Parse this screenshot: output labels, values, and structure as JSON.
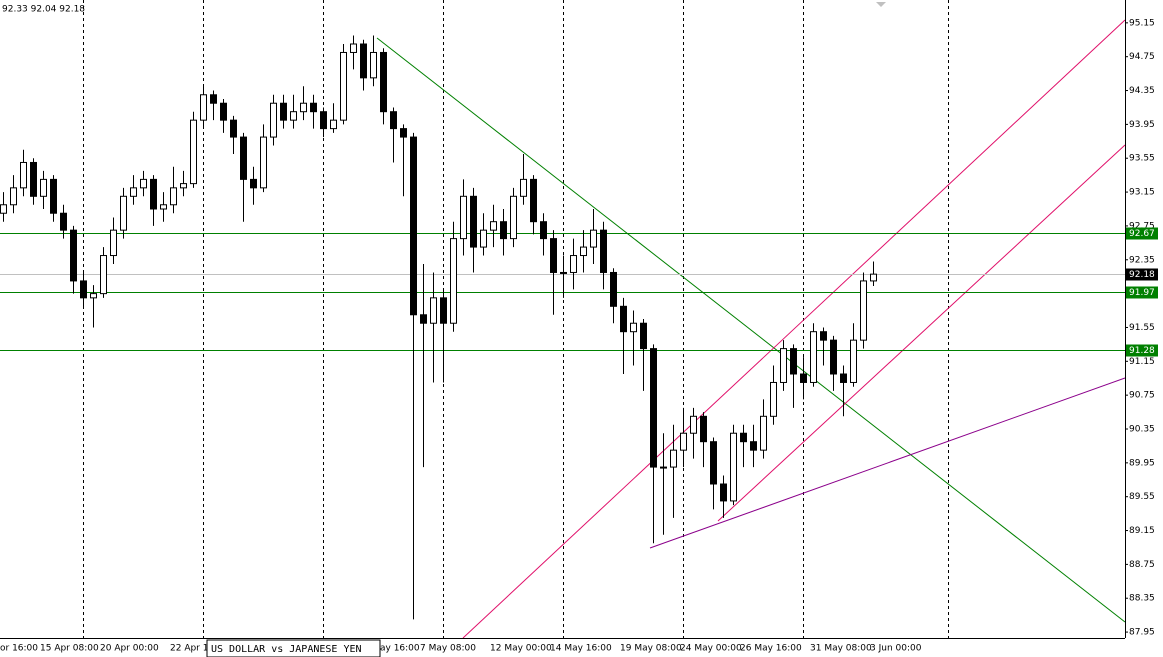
{
  "chart_data": {
    "type": "candlestick",
    "header": "92.33 92.04 92.18",
    "title": "US DOLLAR vs JAPANESE YEN",
    "categories": [
      "or 16:00",
      null,
      null,
      null,
      "15 Apr 08:00",
      null,
      null,
      null,
      null,
      null,
      "20 Apr 00:00",
      null,
      null,
      null,
      null,
      null,
      null,
      "22 Apr 1",
      null,
      null,
      null,
      null,
      null,
      null,
      null,
      null,
      null,
      null,
      null,
      null,
      null,
      null,
      null,
      null,
      null,
      null,
      null,
      null,
      "ay 16:00",
      null,
      null,
      null,
      "7 May 08:00",
      null,
      null,
      null,
      null,
      null,
      null,
      "12 May 00:00",
      null,
      null,
      null,
      null,
      null,
      "14 May 16:00",
      null,
      null,
      null,
      null,
      null,
      null,
      "19 May 08:00",
      null,
      null,
      null,
      null,
      null,
      "24 May 00:00",
      null,
      null,
      null,
      null,
      null,
      "26 May 16:00",
      null,
      null,
      null,
      null,
      null,
      null,
      "31 May 08:00",
      null,
      null,
      null,
      null,
      null,
      "3 Jun 00:00"
    ],
    "open": [
      92.9,
      93.0,
      93.2,
      93.5,
      93.1,
      93.3,
      92.9,
      92.7,
      92.1,
      91.9,
      91.95,
      92.4,
      92.7,
      93.1,
      93.2,
      93.3,
      92.95,
      93.0,
      93.2,
      93.25,
      94.0,
      94.3,
      94.2,
      94.0,
      93.8,
      93.3,
      93.2,
      93.8,
      94.2,
      94.0,
      94.1,
      94.2,
      94.1,
      93.9,
      94.0,
      94.8,
      94.9,
      94.5,
      94.8,
      94.1,
      93.9,
      93.8,
      91.7,
      91.6,
      91.9,
      91.6,
      92.6,
      93.1,
      92.5,
      92.7,
      92.8,
      92.6,
      93.1,
      93.3,
      92.8,
      92.6,
      92.2,
      92.2,
      92.4,
      92.5,
      92.7,
      92.2,
      91.8,
      91.5,
      91.6,
      91.3,
      89.9,
      89.9,
      90.1,
      90.3,
      90.5,
      90.2,
      89.7,
      89.5,
      90.3,
      90.2,
      90.1,
      90.5,
      90.9,
      91.3,
      91.0,
      90.9,
      91.5,
      91.4,
      91.0,
      90.9,
      91.4,
      92.1
    ],
    "high": [
      93.15,
      93.35,
      93.65,
      93.55,
      93.4,
      93.35,
      93.0,
      92.75,
      92.2,
      92.05,
      92.5,
      92.85,
      93.2,
      93.35,
      93.4,
      93.35,
      93.15,
      93.45,
      93.4,
      94.1,
      94.4,
      94.35,
      94.25,
      94.05,
      93.85,
      93.45,
      93.95,
      94.3,
      94.3,
      94.3,
      94.4,
      94.3,
      94.15,
      94.2,
      94.9,
      95.0,
      94.95,
      95.0,
      94.85,
      94.15,
      93.95,
      93.85,
      92.3,
      92.2,
      92.0,
      92.8,
      93.3,
      93.2,
      92.9,
      93.0,
      92.95,
      93.2,
      93.6,
      93.35,
      92.9,
      92.7,
      92.4,
      92.6,
      92.7,
      92.95,
      92.8,
      92.25,
      91.9,
      91.75,
      91.65,
      91.35,
      90.3,
      90.4,
      90.6,
      90.6,
      90.55,
      90.25,
      89.8,
      90.4,
      90.4,
      90.4,
      90.7,
      91.1,
      91.4,
      91.35,
      91.2,
      91.6,
      91.55,
      91.45,
      91.1,
      91.6,
      92.2,
      92.33
    ],
    "low": [
      92.8,
      92.9,
      93.1,
      93.0,
      92.95,
      92.8,
      92.6,
      91.95,
      91.8,
      91.55,
      91.9,
      92.3,
      92.6,
      93.0,
      93.1,
      92.75,
      92.8,
      92.9,
      93.1,
      93.2,
      93.9,
      94.0,
      93.85,
      93.6,
      92.8,
      93.0,
      93.15,
      93.7,
      93.9,
      93.9,
      94.0,
      93.9,
      93.8,
      93.85,
      93.95,
      94.6,
      94.35,
      94.4,
      93.95,
      93.5,
      93.1,
      88.1,
      89.9,
      90.9,
      90.9,
      91.5,
      92.4,
      92.2,
      92.4,
      92.5,
      92.4,
      92.5,
      93.0,
      92.65,
      92.4,
      91.7,
      91.9,
      92.0,
      92.2,
      92.3,
      92.0,
      91.6,
      91.0,
      91.1,
      90.8,
      89.0,
      89.1,
      89.3,
      89.9,
      90.0,
      89.9,
      89.4,
      89.3,
      89.45,
      89.9,
      89.9,
      90.0,
      90.4,
      90.8,
      90.6,
      90.7,
      90.85,
      91.1,
      90.8,
      90.5,
      90.85,
      91.3,
      92.04
    ],
    "close": [
      93.0,
      93.2,
      93.5,
      93.1,
      93.3,
      92.9,
      92.7,
      92.1,
      91.9,
      91.95,
      92.4,
      92.7,
      93.1,
      93.2,
      93.3,
      92.95,
      93.0,
      93.2,
      93.25,
      94.0,
      94.3,
      94.2,
      94.0,
      93.8,
      93.3,
      93.2,
      93.8,
      94.2,
      94.0,
      94.1,
      94.2,
      94.1,
      93.9,
      94.0,
      94.8,
      94.9,
      94.5,
      94.8,
      94.1,
      93.9,
      93.8,
      91.7,
      91.6,
      91.9,
      91.6,
      92.6,
      93.1,
      92.5,
      92.7,
      92.8,
      92.6,
      93.1,
      93.3,
      92.8,
      92.6,
      92.2,
      92.2,
      92.4,
      92.5,
      92.7,
      92.2,
      91.8,
      91.5,
      91.6,
      91.3,
      89.9,
      89.9,
      90.1,
      90.3,
      90.5,
      90.2,
      89.7,
      89.5,
      90.3,
      90.2,
      90.1,
      90.5,
      90.9,
      91.3,
      91.0,
      90.9,
      91.5,
      91.4,
      91.0,
      90.9,
      91.4,
      92.1,
      92.18
    ],
    "ylim": [
      87.88,
      95.42
    ],
    "yticks": [
      95.15,
      94.75,
      94.35,
      93.95,
      93.55,
      93.15,
      92.75,
      92.35,
      91.95,
      91.55,
      91.15,
      90.75,
      90.35,
      89.95,
      89.55,
      89.15,
      88.75,
      88.35,
      87.95
    ],
    "hlines": [
      {
        "value": 92.67,
        "color": "#008000"
      },
      {
        "value": 91.97,
        "color": "#008000"
      },
      {
        "value": 91.28,
        "color": "#008000"
      }
    ],
    "color": "#000000"
  }
}
